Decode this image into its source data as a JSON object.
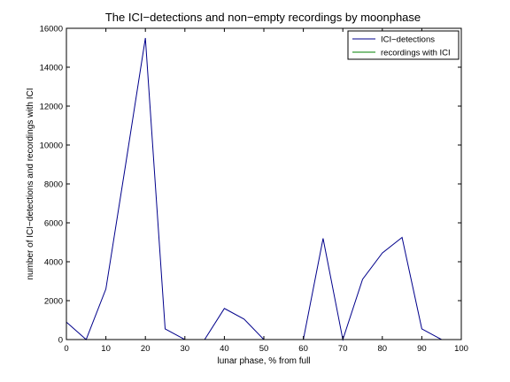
{
  "chart_data": {
    "type": "line",
    "title": "The ICI−detections and non−empty recordings by moonphase",
    "xlabel": "lunar phase, % from full",
    "ylabel": "number of ICI−detections and recordings with ICI",
    "xlim": [
      0,
      100
    ],
    "ylim": [
      0,
      16000
    ],
    "xticks": [
      0,
      10,
      20,
      30,
      40,
      50,
      60,
      70,
      80,
      90,
      100
    ],
    "yticks": [
      0,
      2000,
      4000,
      6000,
      8000,
      10000,
      12000,
      14000,
      16000
    ],
    "grid": false,
    "legend_position": "top-right",
    "x": [
      0,
      5,
      10,
      15,
      20,
      25,
      30,
      35,
      40,
      45,
      50,
      55,
      60,
      65,
      70,
      75,
      80,
      85,
      90,
      95
    ],
    "series": [
      {
        "name": "ICI−detections",
        "color": "#00008b",
        "values": [
          900,
          0,
          2600,
          9000,
          15500,
          550,
          0,
          0,
          1600,
          1050,
          0,
          0,
          0,
          5200,
          0,
          3100,
          4450,
          5250,
          550,
          0
        ]
      },
      {
        "name": "recordings with ICI",
        "color": "#008000",
        "values": [
          0,
          0,
          0,
          0,
          0,
          0,
          0,
          0,
          0,
          0,
          0,
          0,
          0,
          0,
          0,
          0,
          0,
          0,
          0,
          0
        ]
      }
    ]
  }
}
